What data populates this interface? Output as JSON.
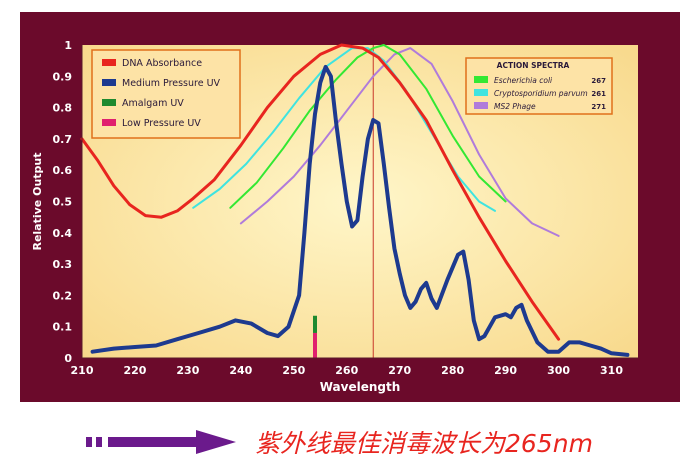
{
  "chart_data": {
    "type": "line",
    "ylabel": "Relative Output",
    "xlabel": "Wavelength",
    "xlim": [
      210,
      315
    ],
    "ylim": [
      0,
      1
    ],
    "x_ticks": [
      210,
      220,
      230,
      240,
      250,
      260,
      270,
      280,
      290,
      300,
      310
    ],
    "y_ticks": [
      "0",
      "0.1",
      "0.2",
      "0.3",
      "0.4",
      "0.5",
      "0.6",
      "0.7",
      "0.8",
      "0.9",
      "1"
    ],
    "vertical_marker_x": 265,
    "grid": false,
    "legend_main": {
      "placement": "top-left",
      "entries": [
        "DNA Absorbance",
        "Medium Pressure UV",
        "Amalgam UV",
        "Low Pressure UV"
      ]
    },
    "legend_action": {
      "title": "ACTION SPECTRA",
      "placement": "top-right",
      "entries": [
        {
          "name": "Escherichia coli",
          "value": "267"
        },
        {
          "name": "Cryptosporidium parvum",
          "value": "261"
        },
        {
          "name": "MS2 Phage",
          "value": "271"
        }
      ]
    },
    "series": [
      {
        "name": "DNA Absorbance",
        "color": "#e8251f",
        "points": [
          [
            210,
            0.7
          ],
          [
            213,
            0.63
          ],
          [
            216,
            0.55
          ],
          [
            219,
            0.49
          ],
          [
            222,
            0.455
          ],
          [
            225,
            0.45
          ],
          [
            228,
            0.47
          ],
          [
            231,
            0.51
          ],
          [
            235,
            0.57
          ],
          [
            240,
            0.68
          ],
          [
            245,
            0.8
          ],
          [
            250,
            0.9
          ],
          [
            255,
            0.97
          ],
          [
            259,
            1.0
          ],
          [
            263,
            0.99
          ],
          [
            266,
            0.96
          ],
          [
            270,
            0.88
          ],
          [
            275,
            0.76
          ],
          [
            280,
            0.6
          ],
          [
            285,
            0.45
          ],
          [
            290,
            0.31
          ],
          [
            295,
            0.18
          ],
          [
            300,
            0.06
          ]
        ]
      },
      {
        "name": "Medium Pressure UV",
        "color": "#1d3a8f",
        "points": [
          [
            212,
            0.02
          ],
          [
            216,
            0.03
          ],
          [
            220,
            0.035
          ],
          [
            224,
            0.04
          ],
          [
            228,
            0.06
          ],
          [
            232,
            0.08
          ],
          [
            236,
            0.1
          ],
          [
            239,
            0.12
          ],
          [
            242,
            0.11
          ],
          [
            245,
            0.08
          ],
          [
            247,
            0.07
          ],
          [
            249,
            0.1
          ],
          [
            251,
            0.2
          ],
          [
            252,
            0.4
          ],
          [
            253,
            0.62
          ],
          [
            254,
            0.78
          ],
          [
            255,
            0.88
          ],
          [
            256,
            0.93
          ],
          [
            257,
            0.9
          ],
          [
            258,
            0.75
          ],
          [
            259,
            0.62
          ],
          [
            260,
            0.5
          ],
          [
            261,
            0.42
          ],
          [
            262,
            0.44
          ],
          [
            263,
            0.58
          ],
          [
            264,
            0.7
          ],
          [
            265,
            0.76
          ],
          [
            266,
            0.75
          ],
          [
            267,
            0.62
          ],
          [
            268,
            0.48
          ],
          [
            269,
            0.35
          ],
          [
            270,
            0.27
          ],
          [
            271,
            0.2
          ],
          [
            272,
            0.16
          ],
          [
            273,
            0.18
          ],
          [
            274,
            0.22
          ],
          [
            275,
            0.24
          ],
          [
            276,
            0.19
          ],
          [
            277,
            0.16
          ],
          [
            279,
            0.25
          ],
          [
            281,
            0.33
          ],
          [
            282,
            0.34
          ],
          [
            283,
            0.25
          ],
          [
            284,
            0.12
          ],
          [
            285,
            0.06
          ],
          [
            286,
            0.07
          ],
          [
            288,
            0.13
          ],
          [
            290,
            0.14
          ],
          [
            291,
            0.13
          ],
          [
            292,
            0.16
          ],
          [
            293,
            0.17
          ],
          [
            294,
            0.12
          ],
          [
            296,
            0.05
          ],
          [
            298,
            0.02
          ],
          [
            300,
            0.02
          ],
          [
            302,
            0.05
          ],
          [
            304,
            0.05
          ],
          [
            306,
            0.04
          ],
          [
            308,
            0.03
          ],
          [
            310,
            0.015
          ],
          [
            313,
            0.01
          ]
        ]
      },
      {
        "name": "Amalgam UV",
        "color": "#1e8a2f",
        "marker_x": 254,
        "segments": [
          [
            0.135,
            0.08
          ]
        ]
      },
      {
        "name": "Low Pressure UV",
        "color": "#e0206e",
        "marker_x": 254,
        "segments": [
          [
            0.08,
            0.0
          ]
        ]
      },
      {
        "name": "Escherichia coli",
        "color": "#33e833",
        "points": [
          [
            238,
            0.48
          ],
          [
            243,
            0.56
          ],
          [
            248,
            0.67
          ],
          [
            253,
            0.79
          ],
          [
            258,
            0.89
          ],
          [
            262,
            0.96
          ],
          [
            265,
            0.99
          ],
          [
            267,
            1.0
          ],
          [
            270,
            0.97
          ],
          [
            275,
            0.86
          ],
          [
            280,
            0.71
          ],
          [
            285,
            0.58
          ],
          [
            290,
            0.5
          ]
        ]
      },
      {
        "name": "Cryptosporidium parvum",
        "color": "#3fe4e0",
        "points": [
          [
            231,
            0.48
          ],
          [
            236,
            0.54
          ],
          [
            241,
            0.62
          ],
          [
            246,
            0.72
          ],
          [
            251,
            0.83
          ],
          [
            256,
            0.93
          ],
          [
            261,
            0.99
          ],
          [
            264,
            0.99
          ],
          [
            267,
            0.95
          ],
          [
            271,
            0.86
          ],
          [
            276,
            0.72
          ],
          [
            281,
            0.58
          ],
          [
            285,
            0.5
          ],
          [
            288,
            0.47
          ]
        ]
      },
      {
        "name": "MS2 Phage",
        "color": "#b07bdb",
        "points": [
          [
            240,
            0.43
          ],
          [
            245,
            0.5
          ],
          [
            250,
            0.58
          ],
          [
            255,
            0.68
          ],
          [
            260,
            0.79
          ],
          [
            265,
            0.9
          ],
          [
            269,
            0.97
          ],
          [
            272,
            0.99
          ],
          [
            276,
            0.94
          ],
          [
            280,
            0.82
          ],
          [
            285,
            0.65
          ],
          [
            290,
            0.51
          ],
          [
            295,
            0.43
          ],
          [
            300,
            0.39
          ]
        ]
      }
    ]
  },
  "caption": {
    "text": "紫外线最佳消毒波长为265nm",
    "arrow_color": "#6b1a8c",
    "text_color": "#e8251f"
  },
  "colors": {
    "frame": "#6b0a2b",
    "plot_bg": "#fce9a8",
    "marker_line": "#c8382a"
  }
}
